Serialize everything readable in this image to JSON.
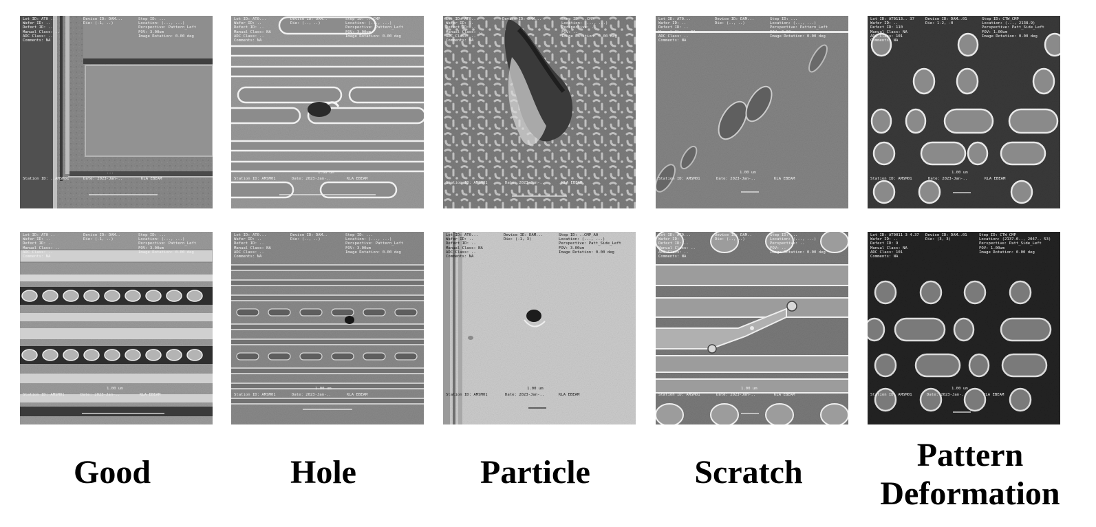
{
  "categories": [
    "Good",
    "Hole",
    "Particle",
    "Scratch",
    "Pattern\nDeformation"
  ],
  "tiles": [
    {
      "col1": [
        "Lot ID: AT0 ..",
        "Wafer ID: ..",
        "Defect ID: ..",
        "Manual Class: ..",
        "ADC Class: ..",
        "Comments: NA"
      ],
      "col2": [
        "Device ID: DAM...",
        "Die: (-1, ..)"
      ],
      "col3": [
        "Step ID: ...",
        "Location: (..., ...)",
        "Perspective: Pattern_Left",
        "FOV: 3.00um",
        "Image Rotation: 0.00 deg"
      ],
      "bottom": [
        "Station ID: ..AMSM01",
        "Date: 2023-Jan-..",
        "KLA EBEAM"
      ],
      "scale": "..."
    },
    {
      "col1": [
        "Lot ID: AT0...",
        "Wafer ID: ..",
        "Defect ID: ..",
        "Manual Class: NA",
        "ADC Class: ..",
        "Comments: NA"
      ],
      "col2": [
        "Device ID: DAM..",
        "Die: (.., ..)"
      ],
      "col3": [
        "Step ID: ...CMP",
        "Location: (..., ...)",
        "Perspective: Pattern_Left",
        "FOV: 3.00um",
        "Image Rotation: 0.00 deg"
      ],
      "bottom": [
        "Station ID: AMSM01",
        "Date: 2023-Jan-..",
        "KLA EBEAM"
      ],
      "scale": "1.00 um"
    },
    {
      "col1": [
        "Lot ID: AT0...",
        "Wafer ID: ..",
        "Defect ID: ..",
        "Manual Class: ..",
        "ADC Class: ..",
        "Comments: NA"
      ],
      "col2": [
        "Device ID: DAM..."
      ],
      "col3": [
        "Step ID: ..CMP",
        "Location: (..., ...)",
        "Perspective: ..",
        "FOV: ..",
        "Image Rotation: 0.00 deg"
      ],
      "bottom": [
        "Station ID: AMSM01",
        "Date: 2023-Jan-..",
        "KLA EBEAM"
      ],
      "scale": ""
    },
    {
      "col1": [
        "Lot ID: AT0...",
        "Wafer ID: ..",
        "Defect ID: ..",
        "Manual Class: NA",
        "ADC Class: ..",
        "Comments: NA"
      ],
      "col2": [
        "Device ID: DAM...",
        "Die: (.., ..)"
      ],
      "col3": [
        "Step ID: ...",
        "Location: (..., ...)",
        "Perspective: Pattern_Left",
        "FOV: 3.00um",
        "Image Rotation: 0.00 deg"
      ],
      "bottom": [
        "Station ID: AMSM01",
        "Date: 2023-Jan-..",
        "KLA EBEAM"
      ],
      "scale": "1.00 um"
    },
    {
      "col1": [
        "Lot ID: AT0113.. 37",
        "Wafer ID: ..",
        "Defect ID: 110",
        "Manual Class: NA",
        "ADC Class: 101",
        "Comments: NA"
      ],
      "col2": [
        "Device ID: DAM..01",
        "Die: 1-2, -0"
      ],
      "col3": [
        "Step ID: CTW_CMP",
        "Location: (..., 2138.9)",
        "Perspective: Patt_Side_Left",
        "FOV: 1.00um",
        "Image Rotation: 0.00 deg"
      ],
      "bottom": [
        "Station ID: AMSM01",
        "Date: 2023-Jan-..",
        "KLA EBEAM"
      ],
      "scale": "1.00 um"
    },
    {
      "col1": [
        "Lot ID: AT0 ..",
        "Wafer ID: ..",
        "Defect ID: ..",
        "Manual Class: ..",
        "ADC Class: ..",
        "Comments: NA"
      ],
      "col2": [
        "Device ID: DAM..",
        "Die: (-1, ..)"
      ],
      "col3": [
        "Step ID: ...",
        "Location: (..., ...)",
        "Perspective: Pattern_Left",
        "FOV: 3.00um",
        "Image Rotation: 0.00 deg"
      ],
      "bottom": [
        "Station ID: AMSM01",
        "Date: 2023-Jan-..",
        "KLA EBEAM"
      ],
      "scale": "1.00 um"
    },
    {
      "col1": [
        "Lot ID: AT0...",
        "Wafer ID: ..",
        "Defect ID: ..",
        "Manual Class: NA",
        "ADC Class: ..",
        "Comments: NA"
      ],
      "col2": [
        "Device ID: DAM..",
        "Die: (.., ..)"
      ],
      "col3": [
        "Step ID: ...",
        "Location: (..., ...)",
        "Perspective: Pattern_Left",
        "FOV: 3.00um",
        "Image Rotation: 0.00 deg"
      ],
      "bottom": [
        "Station ID: AMSM01",
        "Date: 2023-Jan-..",
        "KLA EBEAM"
      ],
      "scale": "1.00 um"
    },
    {
      "col1": [
        "Lot ID: AT0...",
        "Wafer ID: ..",
        "Defect ID: ..",
        "Manual Class: NA",
        "ADC Class: ..",
        "Comments: NA"
      ],
      "col2": [
        "Device ID: DAM...",
        "Die: (-1, 3)"
      ],
      "col3": [
        "Step ID: ..CMP_A0",
        "Location: (..., ...)",
        "Perspective: Patt_Side_Left",
        "FOV: 3.00um",
        "Image Rotation: 0.00 deg"
      ],
      "bottom": [
        "Station ID: AMSM01",
        "Date: 2023-Jan-..",
        "KLA EBEAM"
      ],
      "scale": "1.00 um"
    },
    {
      "col1": [
        "Lot ID: AT0...",
        "Wafer ID: ..",
        "Defect ID: ..",
        "Manual Class: ..",
        "ADC Class: ..",
        "Comments: NA"
      ],
      "col2": [
        "Device ID: DAM..",
        "Die: (.., ..)"
      ],
      "col3": [
        "Step ID: ...",
        "Location: (..., ...)",
        "Perspective: ..",
        "FOV: ..",
        "Image Rotation: 0.00 deg"
      ],
      "bottom": [
        "Station ID: AMSM01",
        "Date: 2023-Jan-..",
        "KLA EBEAM"
      ],
      "scale": "1.00 um"
    },
    {
      "col1": [
        "Lot ID: AT0011 3 4.37",
        "Wafer ID: ..",
        "Defect ID: 9",
        "Manual Class: NA",
        "ADC Class: 101",
        "Comments: NA"
      ],
      "col2": [
        "Device ID: DAM..01",
        "Die: (3, 3)"
      ],
      "col3": [
        "Step ID: CTW_CMP",
        "Location: (2137.0.., 2047.. 53)",
        "Perspective: Patt_Side_Left",
        "FOV: 1.00um",
        "Image Rotation: 0.00 deg"
      ],
      "bottom": [
        "Station ID: AMSM01",
        "Date: 2023-Jan-..",
        "KLA EBEAM"
      ],
      "scale": "1.00 um"
    }
  ]
}
